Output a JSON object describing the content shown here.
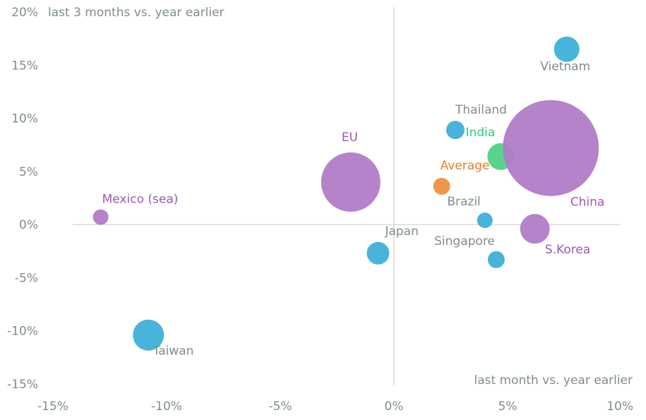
{
  "chart_data": {
    "type": "scatter",
    "subtype": "bubble",
    "title": "",
    "xlabel": "last month vs. year earlier",
    "ylabel": "last 3 months vs. year earlier",
    "xlim": [
      -15,
      10
    ],
    "ylim": [
      -15,
      20
    ],
    "x_ticks": [
      -15,
      -10,
      -5,
      0,
      5,
      10
    ],
    "y_ticks": [
      20,
      15,
      10,
      5,
      0,
      -5,
      -10,
      -15
    ],
    "x_tick_labels": [
      "-15%",
      "-10%",
      "-5%",
      "0%",
      "5%",
      "10%"
    ],
    "y_tick_labels": [
      "20%",
      "15%",
      "10%",
      "5%",
      "0%",
      "-5%",
      "-10%",
      "-15%"
    ],
    "grid": false,
    "zero_lines": true,
    "colors": {
      "blue": "#3fb0d9",
      "purple": "#b07cc6",
      "green": "#4fd282",
      "orange": "#ec9143",
      "label_gray": "#7f8c8d",
      "label_purple": "#9b59b6",
      "label_green": "#2ecc71",
      "label_orange": "#e67e22",
      "axis_line": "#c7c7c7"
    },
    "points": [
      {
        "name": "Vietnam",
        "x": 7.6,
        "y": 16.5,
        "size": 18,
        "color": "blue",
        "label_color": "label_gray",
        "label_pos": "below"
      },
      {
        "name": "Thailand",
        "x": 2.7,
        "y": 8.9,
        "size": 13,
        "color": "blue",
        "label_color": "label_gray",
        "label_pos": "above-right"
      },
      {
        "name": "India",
        "x": 4.7,
        "y": 6.4,
        "size": 19,
        "color": "green",
        "label_color": "label_green",
        "label_pos": "above-left"
      },
      {
        "name": "China",
        "x": 6.9,
        "y": 7.2,
        "size": 68,
        "color": "purple",
        "label_color": "label_purple",
        "label_pos": "below-right"
      },
      {
        "name": "EU",
        "x": -1.9,
        "y": 4.0,
        "size": 42,
        "color": "purple",
        "label_color": "label_purple",
        "label_pos": "above-left"
      },
      {
        "name": "Average",
        "x": 2.1,
        "y": 3.6,
        "size": 12,
        "color": "orange",
        "label_color": "label_orange",
        "label_pos": "above-right"
      },
      {
        "name": "Brazil",
        "x": 4.0,
        "y": 0.4,
        "size": 11,
        "color": "blue",
        "label_color": "label_gray",
        "label_pos": "above-left"
      },
      {
        "name": "S.Korea",
        "x": 6.2,
        "y": -0.4,
        "size": 21,
        "color": "purple",
        "label_color": "label_purple",
        "label_pos": "below-right"
      },
      {
        "name": "Singapore",
        "x": 4.5,
        "y": -3.3,
        "size": 12,
        "color": "blue",
        "label_color": "label_gray",
        "label_pos": "above-left"
      },
      {
        "name": "Japan",
        "x": -0.7,
        "y": -2.7,
        "size": 16,
        "color": "blue",
        "label_color": "label_gray",
        "label_pos": "above-right"
      },
      {
        "name": "Mexico (sea)",
        "x": -12.9,
        "y": 0.7,
        "size": 11,
        "color": "purple",
        "label_color": "label_purple",
        "label_pos": "above-right"
      },
      {
        "name": "Taiwan",
        "x": -10.8,
        "y": -10.4,
        "size": 22,
        "color": "blue",
        "label_color": "label_gray",
        "label_pos": "below-right"
      }
    ]
  }
}
